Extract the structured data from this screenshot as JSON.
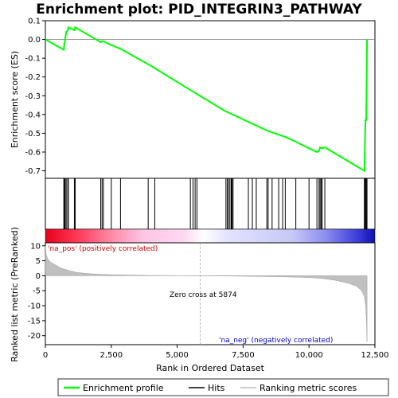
{
  "chart_data": {
    "type": "line",
    "title": "Enrichment plot: PID_INTEGRIN3_PATHWAY",
    "xlabel": "Rank in Ordered Dataset",
    "x_range": [
      0,
      12500
    ],
    "x_ticks": [
      0,
      2500,
      5000,
      7500,
      10000,
      12500
    ],
    "x_tick_labels": [
      "0",
      "2,500",
      "5,000",
      "7,500",
      "10,000",
      "12,500"
    ],
    "es_panel": {
      "ylabel": "Enrichment score (ES)",
      "ylim": [
        -0.74,
        0.1
      ],
      "y_ticks": [
        0.1,
        0.0,
        -0.1,
        -0.2,
        -0.3,
        -0.4,
        -0.5,
        -0.6,
        -0.7
      ],
      "y_tick_labels": [
        "0.1",
        "0.0",
        "-0.1",
        "-0.2",
        "-0.3",
        "-0.4",
        "-0.5",
        "-0.6",
        "-0.7"
      ],
      "series": [
        {
          "name": "Enrichment profile",
          "color": "#00ff00",
          "x": [
            0,
            700,
            720,
            750,
            790,
            850,
            870,
            1100,
            1130,
            2100,
            2150,
            2200,
            2500,
            2850,
            4000,
            5500,
            6800,
            7100,
            8400,
            8700,
            9100,
            9500,
            10000,
            10300,
            10380,
            10420,
            10500,
            10600,
            12100,
            12120,
            12140,
            12170,
            12200
          ],
          "y": [
            0.0,
            -0.055,
            -0.02,
            0.0,
            0.04,
            0.05,
            0.065,
            0.05,
            0.065,
            -0.015,
            -0.01,
            -0.01,
            -0.03,
            -0.05,
            -0.14,
            -0.27,
            -0.38,
            -0.4,
            -0.485,
            -0.5,
            -0.52,
            -0.545,
            -0.58,
            -0.6,
            -0.595,
            -0.575,
            -0.58,
            -0.575,
            -0.7,
            -0.57,
            -0.43,
            -0.43,
            0.0
          ]
        }
      ]
    },
    "hits_panel": {
      "legend_name": "Hits",
      "hit_ranks": [
        700,
        720,
        750,
        790,
        850,
        870,
        1100,
        1130,
        2100,
        2150,
        2200,
        2500,
        2850,
        3900,
        4150,
        5500,
        5600,
        5680,
        5750,
        6850,
        6900,
        6950,
        7000,
        7050,
        7080,
        7120,
        7700,
        7850,
        8000,
        8400,
        8450,
        8600,
        8850,
        9000,
        9100,
        9500,
        10000,
        10300,
        10380,
        10420,
        10460,
        10500,
        10600,
        12100,
        12120,
        12140,
        12170,
        12200
      ]
    },
    "metric_panel": {
      "ylabel": "Ranked list metric (PreRanked)",
      "legend_name": "Ranking metric scores",
      "ylim": [
        -23,
        11
      ],
      "y_ticks": [
        10,
        5,
        0,
        -5,
        -10,
        -15,
        -20
      ],
      "y_tick_labels": [
        "10",
        "5",
        "0",
        "-5",
        "-10",
        "-15",
        "-20"
      ],
      "x": [
        0,
        30,
        100,
        200,
        400,
        600,
        800,
        1000,
        1200,
        1500,
        2000,
        2500,
        3000,
        4000,
        5000,
        5874,
        7000,
        8000,
        9000,
        10000,
        10500,
        11000,
        11500,
        11800,
        12000,
        12100,
        12150,
        12180,
        12200
      ],
      "y": [
        10,
        7,
        5.5,
        4.5,
        3.5,
        2.5,
        2,
        1.5,
        1.1,
        0.8,
        0.5,
        0.35,
        0.25,
        0.12,
        0.05,
        0,
        -0.1,
        -0.2,
        -0.35,
        -0.6,
        -0.9,
        -1.5,
        -2.5,
        -3.5,
        -5,
        -7,
        -10,
        -15,
        -22
      ],
      "zero_cross_label": "Zero cross at 5874",
      "zero_cross_x": 5874,
      "pos_label": "'na_pos' (positively correlated)",
      "neg_label": "'na_neg' (negatively correlated)"
    },
    "legend": {
      "placement": "bottom",
      "entries": [
        "Enrichment profile",
        "Hits",
        "Ranking metric scores"
      ]
    }
  }
}
